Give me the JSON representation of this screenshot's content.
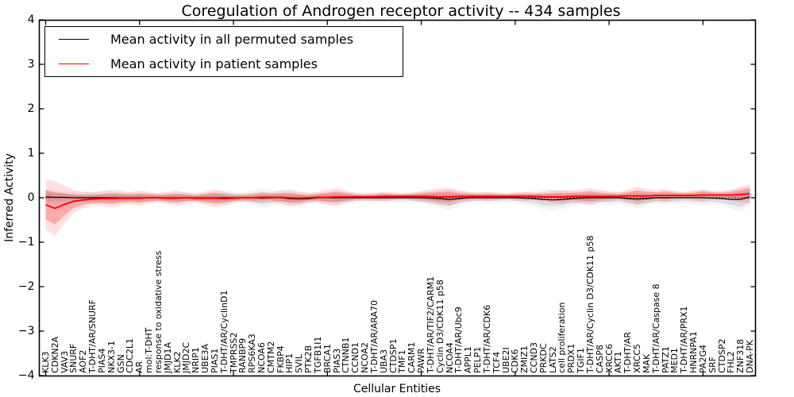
{
  "title": "Coregulation of Androgen receptor activity -- 434 samples",
  "axes": {
    "xlabel": "Cellular Entities",
    "ylabel": "Inferred Activity",
    "ylim": [
      -4,
      4
    ],
    "yticks": [
      4,
      3,
      2,
      1,
      0,
      -1,
      -2,
      -3,
      -4
    ]
  },
  "chart_data": {
    "type": "line",
    "title": "Coregulation of Androgen receptor activity -- 434 samples",
    "xlabel": "Cellular Entities",
    "ylabel": "Inferred Activity",
    "ylim": [
      -4,
      4
    ],
    "yticks": [
      4,
      3,
      2,
      1,
      0,
      -1,
      -2,
      -3,
      -4
    ],
    "grid": false,
    "legend_position": "upper left",
    "zero_line": {
      "value": 0,
      "style": "dotted",
      "color": "#000000"
    },
    "categories": [
      "KLK3",
      "CDKN2A",
      "VAV3",
      "SNURF",
      "AOF2",
      "T-DHT/AR/SNURF",
      "PIAS4",
      "NKX3-1",
      "GSN",
      "CDC2L1",
      "AR",
      "mol:T-DHT",
      "response to oxidative stress",
      "JMJD1A",
      "KLK2",
      "JMJD2C",
      "NRIP1",
      "UBE3A",
      "PIAS1",
      "T-DHT/AR/CyclinD1",
      "TMPRSS2",
      "RANBP9",
      "RPS6KA3",
      "NCOA6",
      "CMTM2",
      "FKBP4",
      "HIP1",
      "SVIL",
      "PTK2B",
      "TGFB1I1",
      "BRCA1",
      "PIAS3",
      "CTNNB1",
      "CCND1",
      "NCOA2",
      "T-DHT/AR/ARA70",
      "UBA3",
      "CTDSP1",
      "TMF1",
      "CARM1",
      "PAWR",
      "T-DHT/AR/TIF2/CARM1",
      "Cyclin D3/CDK11 p58",
      "NCOA4",
      "T-DHT/AR/Ubc9",
      "APPL1",
      "PELP1",
      "T-DHT/AR/CDK6",
      "TCF4",
      "UBE2I",
      "CDK6",
      "ZMIZ1",
      "CCND3",
      "PRKDC",
      "LATS2",
      "cell proliferation",
      "PRDX1",
      "TGIF1",
      "T-DHT/AR/Cyclin D3/CDK11 p58",
      "CASP8",
      "XRCC6",
      "AKT1",
      "T-DHT/AR",
      "XRCC5",
      "MAK",
      "T-DHT/AR/Caspase 8",
      "PATZ1",
      "MED1",
      "T-DHT/AR/PRX1",
      "HNRNPA1",
      "PA2G4",
      "SRF",
      "CTDSP2",
      "FHL2",
      "ZNF318",
      "DNA-PK"
    ],
    "series": [
      {
        "name": "Mean activity in all permuted samples",
        "color": "#000000",
        "band_color": "rgba(0,0,0,0.09)",
        "line_width": 1.2,
        "values": [
          0.02,
          0.01,
          0.01,
          0,
          0,
          0,
          0,
          0,
          0,
          0,
          0,
          0,
          0,
          0,
          0,
          0,
          0,
          0,
          0,
          0,
          0,
          0,
          0,
          -0.01,
          0,
          0,
          -0.02,
          -0.03,
          -0.02,
          0,
          0,
          0,
          0,
          0,
          0,
          0,
          0,
          0,
          0,
          0,
          0,
          -0.01,
          -0.02,
          -0.04,
          -0.02,
          0,
          0,
          0,
          0,
          0,
          0,
          -0.01,
          -0.02,
          -0.04,
          -0.05,
          -0.04,
          -0.02,
          -0.01,
          0,
          0,
          0,
          0,
          -0.02,
          -0.03,
          -0.02,
          0,
          0,
          0,
          0,
          0,
          0,
          -0.01,
          -0.02,
          -0.04,
          -0.04,
          0.02
        ],
        "band_std": [
          0.1,
          0.09,
          0.08,
          0.07,
          0.07,
          0.08,
          0.08,
          0.08,
          0.07,
          0.07,
          0.07,
          0.06,
          0.06,
          0.07,
          0.07,
          0.07,
          0.06,
          0.07,
          0.08,
          0.1,
          0.08,
          0.07,
          0.09,
          0.13,
          0.11,
          0.08,
          0.09,
          0.11,
          0.08,
          0.07,
          0.08,
          0.09,
          0.08,
          0.07,
          0.07,
          0.07,
          0.07,
          0.06,
          0.06,
          0.07,
          0.08,
          0.09,
          0.12,
          0.14,
          0.1,
          0.08,
          0.07,
          0.07,
          0.07,
          0.06,
          0.07,
          0.08,
          0.1,
          0.13,
          0.14,
          0.12,
          0.1,
          0.09,
          0.1,
          0.09,
          0.1,
          0.08,
          0.1,
          0.12,
          0.1,
          0.08,
          0.09,
          0.08,
          0.07,
          0.09,
          0.1,
          0.08,
          0.09,
          0.12,
          0.16,
          0.12
        ]
      },
      {
        "name": "Mean activity in patient samples",
        "color": "#ff0000",
        "band_color": "rgba(255,0,0,0.24)",
        "line_width": 1.8,
        "values": [
          -0.16,
          -0.24,
          -0.15,
          -0.08,
          -0.05,
          -0.03,
          -0.02,
          -0.02,
          -0.01,
          -0.01,
          -0.01,
          0,
          0,
          -0.01,
          -0.01,
          0,
          -0.01,
          -0.01,
          -0.01,
          -0.02,
          -0.01,
          0,
          0,
          0.01,
          0.01,
          0.01,
          0,
          -0.01,
          0,
          0.01,
          0.01,
          0.02,
          0.02,
          0.02,
          0.02,
          0.02,
          0.03,
          0.03,
          0.03,
          0.03,
          0.03,
          0.03,
          0.02,
          0.02,
          0.03,
          0.03,
          0.03,
          0.03,
          0.03,
          0.03,
          0.03,
          0.03,
          0.03,
          0.02,
          0.02,
          0.02,
          0.03,
          0.03,
          0.03,
          0.03,
          0.03,
          0.03,
          0.04,
          0.04,
          0.04,
          0.05,
          0.05,
          0.05,
          0.05,
          0.05,
          0.06,
          0.06,
          0.06,
          0.06,
          0.07,
          0.09
        ],
        "band_std": [
          0.33,
          0.36,
          0.25,
          0.15,
          0.11,
          0.09,
          0.1,
          0.12,
          0.1,
          0.08,
          0.1,
          0.08,
          0.06,
          0.08,
          0.1,
          0.07,
          0.06,
          0.09,
          0.12,
          0.09,
          0.06,
          0.05,
          0.06,
          0.07,
          0.06,
          0.09,
          0.11,
          0.08,
          0.06,
          0.07,
          0.1,
          0.12,
          0.08,
          0.05,
          0.04,
          0.05,
          0.06,
          0.05,
          0.04,
          0.05,
          0.07,
          0.09,
          0.11,
          0.12,
          0.08,
          0.06,
          0.05,
          0.06,
          0.05,
          0.04,
          0.05,
          0.06,
          0.05,
          0.06,
          0.08,
          0.09,
          0.08,
          0.09,
          0.11,
          0.08,
          0.06,
          0.05,
          0.08,
          0.12,
          0.09,
          0.07,
          0.09,
          0.06,
          0.05,
          0.06,
          0.08,
          0.06,
          0.05,
          0.07,
          0.1,
          0.13
        ]
      }
    ]
  },
  "legend": {
    "items": [
      {
        "label": "Mean activity in all permuted samples",
        "color": "#000000"
      },
      {
        "label": "Mean activity in patient samples",
        "color": "#ff0000"
      }
    ]
  }
}
